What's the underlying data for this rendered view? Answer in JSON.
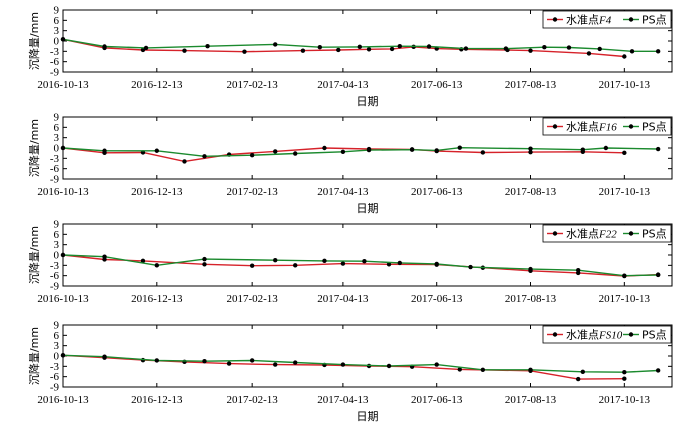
{
  "chart_data": [
    {
      "type": "line",
      "title": "",
      "xlabel": "日期",
      "ylabel": "沉降量/mm",
      "x_ticks": [
        "2016-10-13",
        "2016-12-13",
        "2017-02-13",
        "2017-04-13",
        "2017-06-13",
        "2017-08-13",
        "2017-10-13"
      ],
      "y_ticks": [
        9,
        6,
        3,
        0,
        -3,
        -6,
        -9
      ],
      "xlim": [
        "2016-10-13",
        "2017-11-13"
      ],
      "ylim": [
        -9,
        9
      ],
      "legend_position": "top-right",
      "colors": {
        "water": "#d6222a",
        "ps": "#1b8a2e"
      },
      "series": [
        {
          "name": "水准点F4",
          "name_parts": [
            "水准点",
            "F4"
          ],
          "points": [
            [
              "2016-10-13",
              0.5
            ],
            [
              "2016-11-09",
              -2.0
            ],
            [
              "2016-12-04",
              -2.6
            ],
            [
              "2016-12-31",
              -2.8
            ],
            [
              "2017-02-08",
              -3.1
            ],
            [
              "2017-03-18",
              -2.8
            ],
            [
              "2017-04-10",
              -2.6
            ],
            [
              "2017-04-30",
              -2.4
            ],
            [
              "2017-05-15",
              -2.3
            ],
            [
              "2017-05-29",
              -1.7
            ],
            [
              "2017-06-13",
              -2.2
            ],
            [
              "2017-06-29",
              -2.4
            ],
            [
              "2017-07-29",
              -2.6
            ],
            [
              "2017-08-13",
              -2.8
            ],
            [
              "2017-09-20",
              -3.6
            ],
            [
              "2017-10-13",
              -4.5
            ]
          ]
        },
        {
          "name": "PS点",
          "points": [
            [
              "2016-10-13",
              0.5
            ],
            [
              "2016-11-09",
              -1.6
            ],
            [
              "2016-12-06",
              -2.0
            ],
            [
              "2017-01-15",
              -1.5
            ],
            [
              "2017-02-28",
              -1.0
            ],
            [
              "2017-03-29",
              -1.8
            ],
            [
              "2017-04-24",
              -1.7
            ],
            [
              "2017-05-20",
              -1.5
            ],
            [
              "2017-06-08",
              -1.6
            ],
            [
              "2017-07-02",
              -2.2
            ],
            [
              "2017-07-28",
              -2.2
            ],
            [
              "2017-08-22",
              -1.8
            ],
            [
              "2017-09-07",
              -1.9
            ],
            [
              "2017-09-27",
              -2.3
            ],
            [
              "2017-10-18",
              -3.0
            ],
            [
              "2017-11-04",
              -3.0
            ]
          ]
        }
      ]
    },
    {
      "type": "line",
      "title": "",
      "xlabel": "日期",
      "ylabel": "沉降量/mm",
      "x_ticks": [
        "2016-10-13",
        "2016-12-13",
        "2017-02-13",
        "2017-04-13",
        "2017-06-13",
        "2017-08-13",
        "2017-10-13"
      ],
      "y_ticks": [
        9,
        6,
        3,
        0,
        -3,
        -6,
        -9
      ],
      "xlim": [
        "2016-10-13",
        "2017-11-13"
      ],
      "ylim": [
        -9,
        9
      ],
      "legend_position": "top-right",
      "colors": {
        "water": "#d6222a",
        "ps": "#1b8a2e"
      },
      "series": [
        {
          "name": "水准点F16",
          "name_parts": [
            "水准点",
            "F16"
          ],
          "points": [
            [
              "2016-10-13",
              0.0
            ],
            [
              "2016-11-09",
              -1.4
            ],
            [
              "2016-12-04",
              -1.3
            ],
            [
              "2016-12-31",
              -3.9
            ],
            [
              "2017-01-29",
              -1.9
            ],
            [
              "2017-02-28",
              -1.0
            ],
            [
              "2017-04-01",
              0.0
            ],
            [
              "2017-04-30",
              -0.3
            ],
            [
              "2017-05-28",
              -0.4
            ],
            [
              "2017-06-13",
              -0.9
            ],
            [
              "2017-07-13",
              -1.3
            ],
            [
              "2017-08-13",
              -1.2
            ],
            [
              "2017-09-16",
              -1.1
            ],
            [
              "2017-10-13",
              -1.4
            ]
          ]
        },
        {
          "name": "PS点",
          "points": [
            [
              "2016-10-13",
              0.0
            ],
            [
              "2016-11-09",
              -0.8
            ],
            [
              "2016-12-13",
              -0.8
            ],
            [
              "2017-01-13",
              -2.4
            ],
            [
              "2017-02-13",
              -2.1
            ],
            [
              "2017-03-13",
              -1.6
            ],
            [
              "2017-04-13",
              -1.1
            ],
            [
              "2017-04-30",
              -0.6
            ],
            [
              "2017-05-28",
              -0.5
            ],
            [
              "2017-06-13",
              -0.7
            ],
            [
              "2017-06-28",
              0.1
            ],
            [
              "2017-08-13",
              -0.2
            ],
            [
              "2017-09-16",
              -0.5
            ],
            [
              "2017-10-01",
              0.0
            ],
            [
              "2017-11-04",
              -0.3
            ]
          ]
        }
      ]
    },
    {
      "type": "line",
      "title": "",
      "xlabel": "",
      "ylabel": "沉降量/mm",
      "x_ticks": [
        "2016-10-13",
        "2016-12-13",
        "2017-02-13",
        "2017-04-13",
        "2017-06-13",
        "2017-08-13",
        "2017-10-13"
      ],
      "y_ticks": [
        9,
        6,
        3,
        0,
        -3,
        -6,
        -9
      ],
      "xlim": [
        "2016-10-13",
        "2017-11-13"
      ],
      "ylim": [
        -9,
        9
      ],
      "legend_position": "top-right",
      "colors": {
        "water": "#d6222a",
        "ps": "#1b8a2e"
      },
      "series": [
        {
          "name": "水准点F22",
          "name_parts": [
            "水准点",
            "F22"
          ],
          "points": [
            [
              "2016-10-13",
              0.0
            ],
            [
              "2016-11-09",
              -1.3
            ],
            [
              "2016-12-04",
              -1.7
            ],
            [
              "2017-01-13",
              -2.7
            ],
            [
              "2017-02-13",
              -3.1
            ],
            [
              "2017-03-13",
              -3.0
            ],
            [
              "2017-04-13",
              -2.5
            ],
            [
              "2017-05-13",
              -2.7
            ],
            [
              "2017-06-13",
              -2.8
            ],
            [
              "2017-07-13",
              -3.7
            ],
            [
              "2017-08-13",
              -4.6
            ],
            [
              "2017-09-13",
              -5.2
            ],
            [
              "2017-10-13",
              -6.1
            ],
            [
              "2017-11-04",
              -5.7
            ]
          ]
        },
        {
          "name": "PS点",
          "points": [
            [
              "2016-10-13",
              0.0
            ],
            [
              "2016-11-09",
              -0.5
            ],
            [
              "2016-12-13",
              -3.0
            ],
            [
              "2017-01-13",
              -1.2
            ],
            [
              "2017-02-28",
              -1.5
            ],
            [
              "2017-04-01",
              -1.7
            ],
            [
              "2017-04-27",
              -1.8
            ],
            [
              "2017-05-20",
              -2.3
            ],
            [
              "2017-06-13",
              -2.6
            ],
            [
              "2017-07-05",
              -3.5
            ],
            [
              "2017-08-13",
              -4.1
            ],
            [
              "2017-09-13",
              -4.4
            ],
            [
              "2017-10-13",
              -6.0
            ],
            [
              "2017-11-04",
              -5.8
            ]
          ]
        }
      ]
    },
    {
      "type": "line",
      "title": "",
      "xlabel": "日期",
      "ylabel": "沉降量/mm",
      "x_ticks": [
        "2016-10-13",
        "2016-12-13",
        "2017-02-13",
        "2017-04-13",
        "2017-06-13",
        "2017-08-13",
        "2017-10-13"
      ],
      "y_ticks": [
        9,
        6,
        3,
        0,
        -3,
        -6,
        -9
      ],
      "xlim": [
        "2016-10-13",
        "2017-11-13"
      ],
      "ylim": [
        -9,
        9
      ],
      "legend_position": "top-right",
      "colors": {
        "water": "#d6222a",
        "ps": "#1b8a2e"
      },
      "series": [
        {
          "name": "水准点FS10",
          "name_parts": [
            "水准点",
            "FS10"
          ],
          "points": [
            [
              "2016-10-13",
              0.2
            ],
            [
              "2016-11-09",
              -0.5
            ],
            [
              "2016-12-04",
              -1.2
            ],
            [
              "2016-12-31",
              -1.7
            ],
            [
              "2017-01-29",
              -2.2
            ],
            [
              "2017-02-28",
              -2.5
            ],
            [
              "2017-04-01",
              -2.6
            ],
            [
              "2017-04-30",
              -2.9
            ],
            [
              "2017-05-28",
              -3.1
            ],
            [
              "2017-06-28",
              -3.9
            ],
            [
              "2017-08-13",
              -4.3
            ],
            [
              "2017-09-13",
              -6.7
            ],
            [
              "2017-10-13",
              -6.6
            ]
          ]
        },
        {
          "name": "PS点",
          "points": [
            [
              "2016-10-13",
              0.2
            ],
            [
              "2016-11-09",
              -0.2
            ],
            [
              "2016-12-13",
              -1.3
            ],
            [
              "2017-01-13",
              -1.5
            ],
            [
              "2017-02-13",
              -1.3
            ],
            [
              "2017-03-13",
              -1.9
            ],
            [
              "2017-04-13",
              -2.5
            ],
            [
              "2017-05-13",
              -2.9
            ],
            [
              "2017-06-13",
              -2.5
            ],
            [
              "2017-07-13",
              -4.0
            ],
            [
              "2017-08-13",
              -4.0
            ],
            [
              "2017-09-16",
              -4.6
            ],
            [
              "2017-10-13",
              -4.7
            ],
            [
              "2017-11-04",
              -4.2
            ]
          ]
        }
      ]
    }
  ]
}
